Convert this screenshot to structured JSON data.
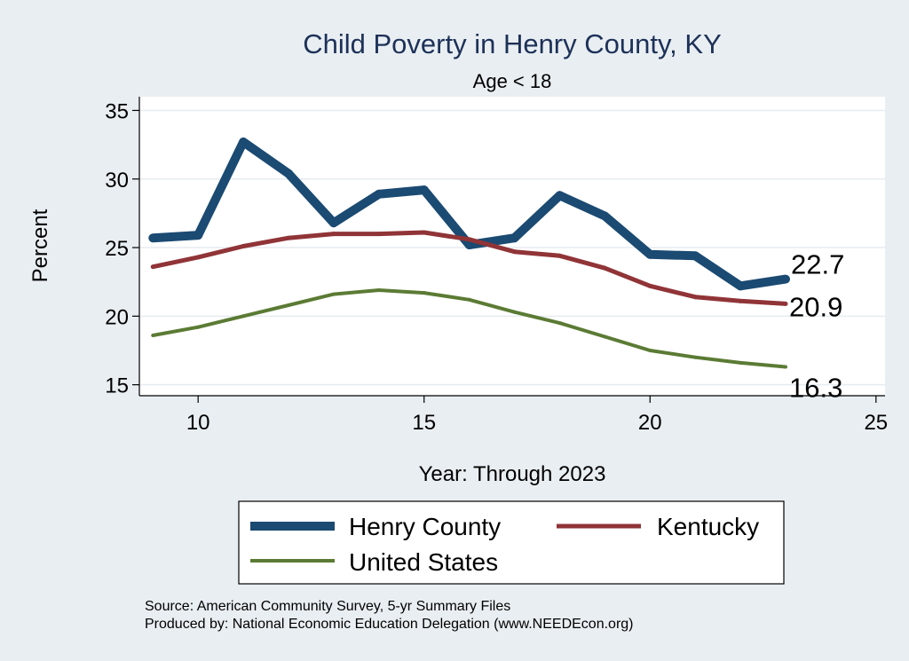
{
  "chart_data": {
    "type": "line",
    "title": "Child Poverty in Henry County, KY",
    "subtitle": "Age < 18",
    "xlabel": "Year: Through 2023",
    "ylabel": "Percent",
    "xlim": [
      8.7,
      25.2
    ],
    "ylim": [
      14.2,
      36.0
    ],
    "xticks": [
      10,
      15,
      20,
      25
    ],
    "yticks": [
      15,
      20,
      25,
      30,
      35
    ],
    "grid": true,
    "legend_position": "bottom",
    "series": [
      {
        "name": "Henry County",
        "color": "#1b4a72",
        "x": [
          9,
          10,
          11,
          12,
          13,
          14,
          15,
          16,
          17,
          18,
          19,
          20,
          21,
          22,
          23
        ],
        "values": [
          25.7,
          25.9,
          32.7,
          30.4,
          26.8,
          28.9,
          29.2,
          25.2,
          25.7,
          28.8,
          27.3,
          24.5,
          24.4,
          22.2,
          22.7
        ],
        "end_label": "22.7"
      },
      {
        "name": "Kentucky",
        "color": "#903437",
        "x": [
          9,
          10,
          11,
          12,
          13,
          14,
          15,
          16,
          17,
          18,
          19,
          20,
          21,
          22,
          23
        ],
        "values": [
          23.6,
          24.3,
          25.1,
          25.7,
          26.0,
          26.0,
          26.1,
          25.6,
          24.7,
          24.4,
          23.5,
          22.2,
          21.4,
          21.1,
          20.9
        ],
        "end_label": "20.9"
      },
      {
        "name": "United States",
        "color": "#5b7b34",
        "x": [
          9,
          10,
          11,
          12,
          13,
          14,
          15,
          16,
          17,
          18,
          19,
          20,
          21,
          22,
          23
        ],
        "values": [
          18.6,
          19.2,
          20.0,
          20.8,
          21.6,
          21.9,
          21.7,
          21.2,
          20.3,
          19.5,
          18.5,
          17.5,
          17.0,
          16.6,
          16.3
        ],
        "end_label": "16.3"
      }
    ]
  },
  "footer": {
    "source": "Source: American Community Survey, 5-yr Summary Files",
    "produced_by": "Produced by: National Economic Education Delegation (www.NEEDEcon.org)"
  }
}
